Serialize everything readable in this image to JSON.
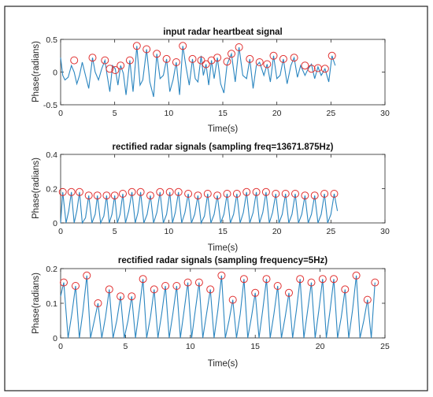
{
  "chart_data": [
    {
      "type": "line",
      "title": "input radar heartbeat signal",
      "xlabel": "Time(s)",
      "ylabel": "Phase(radians)",
      "xlim": [
        0,
        30
      ],
      "ylim": [
        -0.5,
        0.5
      ],
      "xticks": [
        "0",
        "5",
        "10",
        "15",
        "20",
        "25",
        "30"
      ],
      "yticks": [
        "-0.5",
        "0",
        "0.5"
      ],
      "series": [
        {
          "x": [
            0.0,
            0.2,
            0.4,
            0.7,
            1.0,
            1.25,
            1.5,
            1.75,
            2.0,
            2.3,
            2.6,
            2.95,
            3.2,
            3.5,
            3.8,
            4.1,
            4.3,
            4.55,
            4.8,
            5.05,
            5.3,
            5.55,
            5.8,
            6.05,
            6.4,
            6.7,
            7.05,
            7.35,
            7.6,
            7.95,
            8.25,
            8.6,
            8.9,
            9.2,
            9.5,
            9.8,
            10.1,
            10.4,
            10.7,
            11.0,
            11.3,
            11.6,
            11.9,
            12.2,
            12.45,
            12.7,
            13.0,
            13.2,
            13.45,
            13.7,
            13.95,
            14.2,
            14.5,
            14.8,
            15.1,
            15.4,
            15.8,
            16.15,
            16.5,
            16.85,
            17.2,
            17.5,
            17.8,
            18.1,
            18.4,
            18.8,
            19.1,
            19.4,
            19.7,
            20.0,
            20.3,
            20.6,
            20.95,
            21.3,
            21.6,
            21.9,
            22.2,
            22.6,
            22.9,
            23.2,
            23.5,
            23.8,
            24.1,
            24.45,
            24.8,
            25.1,
            25.4
          ],
          "y": [
            0.22,
            -0.05,
            -0.12,
            -0.08,
            0.1,
            0.0,
            -0.18,
            -0.05,
            0.15,
            -0.05,
            -0.25,
            0.22,
            0.0,
            -0.12,
            0.05,
            0.18,
            -0.05,
            -0.3,
            0.1,
            0.05,
            -0.2,
            0.1,
            -0.02,
            -0.35,
            0.18,
            -0.3,
            0.4,
            -0.2,
            -0.12,
            0.35,
            -0.15,
            -0.38,
            0.28,
            -0.1,
            -0.05,
            0.2,
            -0.3,
            -0.12,
            0.15,
            -0.35,
            0.4,
            0.08,
            -0.2,
            0.2,
            -0.1,
            -0.15,
            0.25,
            -0.05,
            0.12,
            -0.2,
            0.18,
            -0.1,
            0.22,
            -0.18,
            -0.32,
            0.12,
            0.28,
            -0.15,
            0.38,
            -0.05,
            -0.1,
            0.2,
            -0.25,
            0.1,
            0.15,
            -0.05,
            0.12,
            -0.15,
            0.25,
            -0.1,
            -0.05,
            0.2,
            -0.18,
            0.1,
            0.22,
            -0.08,
            0.1,
            -0.05,
            0.05,
            0.12,
            -0.1,
            0.08,
            -0.05,
            0.05,
            -0.15,
            0.25,
            0.1
          ]
        }
      ],
      "peaks": {
        "x": [
          1.25,
          2.95,
          4.1,
          4.55,
          5.05,
          5.55,
          6.4,
          7.05,
          7.95,
          8.9,
          9.8,
          10.7,
          11.3,
          12.2,
          13.0,
          13.45,
          13.95,
          14.5,
          15.4,
          15.8,
          16.5,
          17.5,
          18.4,
          19.1,
          19.7,
          20.6,
          21.6,
          22.6,
          23.2,
          23.8,
          24.45,
          25.1
        ],
        "y": [
          0.18,
          0.22,
          0.18,
          0.05,
          0.03,
          0.1,
          0.18,
          0.4,
          0.35,
          0.28,
          0.2,
          0.15,
          0.4,
          0.2,
          0.18,
          0.12,
          0.18,
          0.22,
          0.16,
          0.28,
          0.38,
          0.2,
          0.15,
          0.12,
          0.25,
          0.2,
          0.22,
          0.1,
          0.05,
          0.06,
          0.05,
          0.25
        ]
      }
    },
    {
      "type": "line",
      "title": "rectified radar signals (sampling freq=13671.875Hz)",
      "xlabel": "Time(s)",
      "ylabel": "Phase(radians)",
      "xlim": [
        0,
        30
      ],
      "ylim": [
        0,
        0.4
      ],
      "xticks": [
        "0",
        "5",
        "10",
        "15",
        "20",
        "25",
        "30"
      ],
      "yticks": [
        "0",
        "0.2",
        "0.4"
      ],
      "series": [
        {
          "x": [
            0.0,
            0.2,
            0.5,
            0.75,
            1.0,
            1.25,
            1.5,
            1.75,
            2.0,
            2.3,
            2.6,
            2.9,
            3.2,
            3.4,
            3.7,
            4.0,
            4.25,
            4.5,
            4.75,
            5.0,
            5.25,
            5.5,
            5.75,
            6.0,
            6.3,
            6.6,
            6.9,
            7.15,
            7.4,
            7.7,
            8.0,
            8.3,
            8.6,
            8.9,
            9.2,
            9.5,
            9.8,
            10.1,
            10.35,
            10.6,
            10.9,
            11.2,
            11.5,
            11.8,
            12.1,
            12.4,
            12.7,
            13.0,
            13.3,
            13.6,
            13.9,
            14.2,
            14.5,
            14.8,
            15.1,
            15.4,
            15.7,
            16.0,
            16.3,
            16.6,
            16.9,
            17.2,
            17.5,
            17.8,
            18.1,
            18.4,
            18.7,
            19.0,
            19.3,
            19.6,
            19.9,
            20.2,
            20.5,
            20.8,
            21.1,
            21.4,
            21.7,
            22.0,
            22.3,
            22.6,
            22.9,
            23.2,
            23.5,
            23.8,
            24.1,
            24.4,
            24.7,
            25.0,
            25.3,
            25.6
          ],
          "y": [
            0.0,
            0.18,
            0.0,
            0.07,
            0.18,
            0.0,
            0.07,
            0.18,
            0.0,
            0.03,
            0.16,
            0.0,
            0.05,
            0.16,
            0.0,
            0.04,
            0.16,
            0.0,
            0.05,
            0.16,
            0.0,
            0.05,
            0.17,
            0.0,
            0.07,
            0.18,
            0.0,
            0.06,
            0.18,
            0.0,
            0.05,
            0.16,
            0.0,
            0.06,
            0.18,
            0.0,
            0.05,
            0.18,
            0.0,
            0.06,
            0.18,
            0.0,
            0.06,
            0.17,
            0.0,
            0.05,
            0.16,
            0.0,
            0.04,
            0.17,
            0.0,
            0.05,
            0.16,
            0.0,
            0.05,
            0.17,
            0.0,
            0.05,
            0.17,
            0.0,
            0.06,
            0.18,
            0.0,
            0.06,
            0.18,
            0.0,
            0.06,
            0.18,
            0.0,
            0.06,
            0.17,
            0.0,
            0.05,
            0.17,
            0.0,
            0.05,
            0.17,
            0.0,
            0.05,
            0.16,
            0.0,
            0.05,
            0.16,
            0.0,
            0.05,
            0.17,
            0.0,
            0.05,
            0.17,
            0.07
          ]
        }
      ],
      "peaks": {
        "x": [
          0.2,
          1.0,
          1.75,
          2.6,
          3.4,
          4.25,
          5.0,
          5.75,
          6.6,
          7.4,
          8.3,
          9.2,
          10.1,
          10.9,
          11.8,
          12.7,
          13.6,
          14.5,
          15.4,
          16.3,
          17.2,
          18.1,
          19.0,
          19.9,
          20.8,
          21.7,
          22.6,
          23.5,
          24.4,
          25.3
        ],
        "y": [
          0.18,
          0.18,
          0.18,
          0.16,
          0.16,
          0.16,
          0.16,
          0.17,
          0.18,
          0.18,
          0.16,
          0.18,
          0.18,
          0.18,
          0.17,
          0.16,
          0.17,
          0.16,
          0.17,
          0.17,
          0.18,
          0.18,
          0.18,
          0.17,
          0.17,
          0.17,
          0.16,
          0.16,
          0.17,
          0.17
        ]
      }
    },
    {
      "type": "line",
      "title": "rectified radar signals (sampling frequency=5Hz)",
      "xlabel": "Time(s)",
      "ylabel": "Phase(radians)",
      "xlim": [
        0,
        26
      ],
      "ylim": [
        0,
        0.2
      ],
      "xticks": [
        "0",
        "5",
        "10",
        "15",
        "20",
        "25"
      ],
      "yticks": [
        "0",
        "0.1",
        "0.2"
      ],
      "series": [
        {
          "x": [
            0.0,
            0.25,
            0.6,
            0.9,
            1.2,
            1.5,
            1.8,
            2.1,
            2.4,
            2.7,
            3.0,
            3.3,
            3.6,
            3.9,
            4.2,
            4.5,
            4.8,
            5.1,
            5.4,
            5.7,
            6.0,
            6.3,
            6.6,
            6.9,
            7.2,
            7.5,
            7.8,
            8.1,
            8.4,
            8.7,
            9.0,
            9.3,
            9.6,
            9.9,
            10.2,
            10.5,
            10.8,
            11.1,
            11.4,
            11.7,
            12.0,
            12.3,
            12.6,
            12.9,
            13.2,
            13.5,
            13.8,
            14.1,
            14.4,
            14.7,
            15.0,
            15.3,
            15.6,
            15.9,
            16.2,
            16.5,
            16.8,
            17.1,
            17.4,
            17.7,
            18.0,
            18.3,
            18.6,
            18.9,
            19.2,
            19.5,
            19.8,
            20.1,
            20.4,
            20.7,
            21.0,
            21.3,
            21.6,
            21.9,
            22.2,
            22.5,
            22.8,
            23.1,
            23.4,
            23.7,
            24.0,
            24.3,
            24.6,
            24.9,
            25.2
          ],
          "y": [
            0.12,
            0.16,
            0.0,
            0.07,
            0.15,
            0.0,
            0.08,
            0.18,
            0.0,
            0.05,
            0.1,
            0.0,
            0.06,
            0.14,
            0.0,
            0.05,
            0.12,
            0.0,
            0.05,
            0.12,
            0.0,
            0.08,
            0.17,
            0.0,
            0.06,
            0.14,
            0.0,
            0.07,
            0.15,
            0.0,
            0.07,
            0.15,
            0.0,
            0.08,
            0.16,
            0.0,
            0.08,
            0.16,
            0.0,
            0.07,
            0.14,
            0.0,
            0.08,
            0.18,
            0.0,
            0.05,
            0.11,
            0.0,
            0.07,
            0.17,
            0.0,
            0.06,
            0.13,
            0.0,
            0.08,
            0.17,
            0.0,
            0.07,
            0.15,
            0.0,
            0.06,
            0.13,
            0.0,
            0.08,
            0.17,
            0.0,
            0.08,
            0.16,
            0.0,
            0.08,
            0.17,
            0.0,
            0.08,
            0.17,
            0.0,
            0.06,
            0.14,
            0.0,
            0.08,
            0.18,
            0.0,
            0.05,
            0.11,
            0.0,
            0.16
          ]
        }
      ],
      "peaks": {
        "x": [
          0.25,
          1.2,
          2.1,
          3.0,
          3.9,
          4.8,
          5.7,
          6.6,
          7.5,
          8.4,
          9.3,
          10.2,
          11.1,
          12.0,
          12.9,
          13.8,
          14.7,
          15.6,
          16.5,
          17.4,
          18.3,
          19.2,
          20.1,
          21.0,
          21.9,
          22.8,
          23.7,
          24.6,
          25.2
        ],
        "y": [
          0.16,
          0.15,
          0.18,
          0.1,
          0.14,
          0.12,
          0.12,
          0.17,
          0.14,
          0.15,
          0.15,
          0.16,
          0.16,
          0.14,
          0.18,
          0.11,
          0.17,
          0.13,
          0.17,
          0.15,
          0.13,
          0.17,
          0.16,
          0.17,
          0.17,
          0.14,
          0.18,
          0.11,
          0.16
        ]
      }
    }
  ]
}
